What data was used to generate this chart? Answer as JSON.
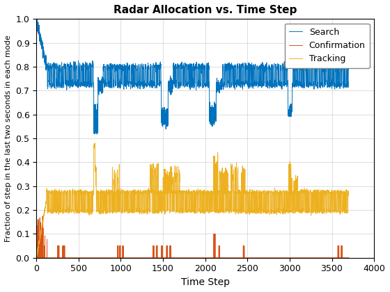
{
  "title": "Radar Allocation vs. Time Step",
  "xlabel": "Time Step",
  "ylabel": "Fraction of step in the last two seconds in each mode",
  "xlim": [
    0,
    4000
  ],
  "ylim": [
    0,
    1.0
  ],
  "yticks": [
    0,
    0.1,
    0.2,
    0.3,
    0.4,
    0.5,
    0.6,
    0.7,
    0.8,
    0.9,
    1.0
  ],
  "xticks": [
    0,
    500,
    1000,
    1500,
    2000,
    2500,
    3000,
    3500,
    4000
  ],
  "search_color": "#0072BD",
  "confirmation_color": "#D95319",
  "tracking_color": "#EDB120",
  "legend_labels": [
    "Search",
    "Confirmation",
    "Tracking"
  ],
  "legend_loc": "upper right",
  "figsize": [
    5.6,
    4.2
  ],
  "dpi": 100,
  "linewidth": 0.7,
  "grid": true,
  "seed": 42,
  "n_steps": 3700
}
